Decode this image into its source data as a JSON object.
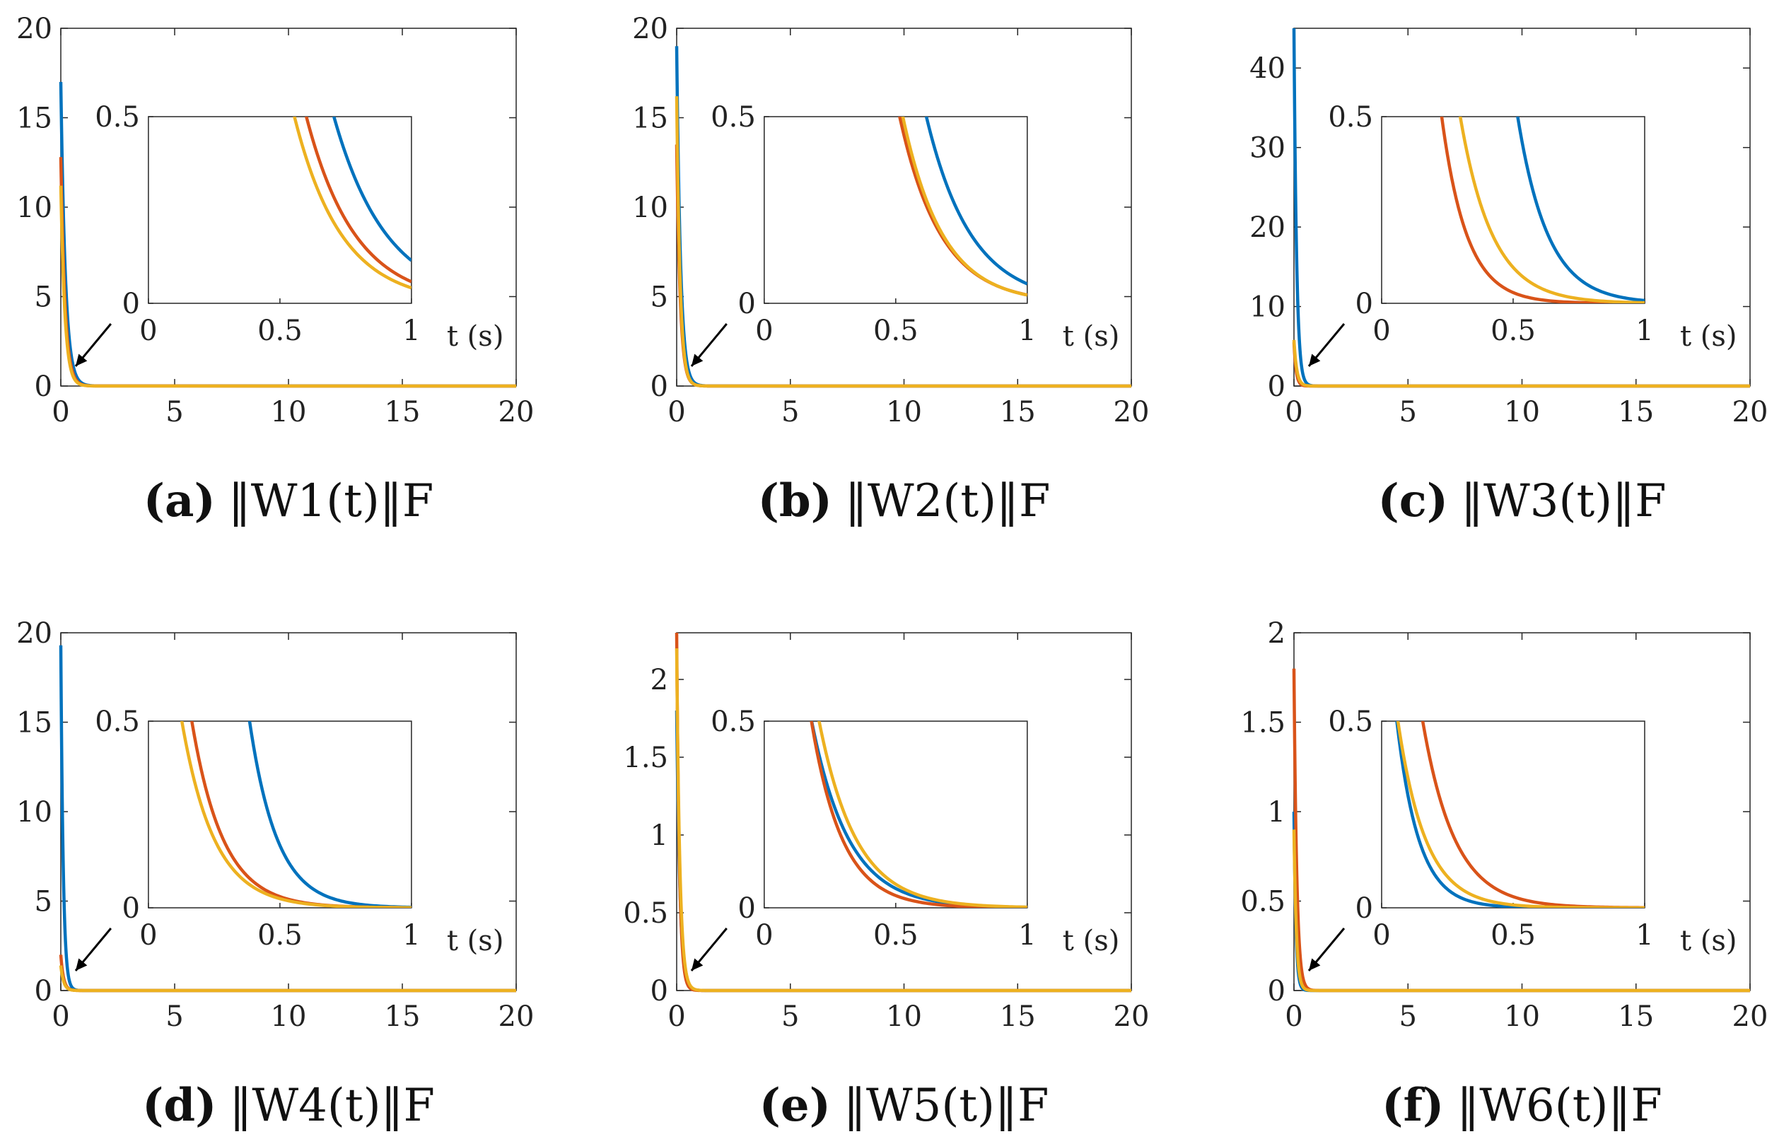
{
  "figure": {
    "colors": [
      "#0072BD",
      "#D95319",
      "#EDB120"
    ]
  },
  "chart_data": [
    {
      "type": "line",
      "id": "a",
      "caption_tag": "(a)",
      "caption_sub": "1",
      "caption_text": "‖W1(t)‖F",
      "xlim": [
        0,
        20
      ],
      "ylim": [
        0,
        20
      ],
      "x_ticks": [
        "0",
        "5",
        "10",
        "15",
        "20"
      ],
      "y_ticks": [
        "0",
        "5",
        "10",
        "15",
        "20"
      ],
      "peaks": [
        17,
        12.8,
        11.2
      ],
      "rates": [
        5,
        5.4,
        5.6
      ],
      "inset": {
        "xlim": [
          0,
          1
        ],
        "ylim": [
          0,
          0.5
        ],
        "x_ticks": [
          "0",
          "0.5",
          "1"
        ],
        "y_ticks": [
          "0",
          "0.5"
        ],
        "xlabel": "t (s)"
      }
    },
    {
      "type": "line",
      "id": "b",
      "caption_tag": "(b)",
      "caption_sub": "2",
      "caption_text": "‖W2(t)‖F",
      "xlim": [
        0,
        20
      ],
      "ylim": [
        0,
        20
      ],
      "x_ticks": [
        "0",
        "5",
        "10",
        "15",
        "20"
      ],
      "y_ticks": [
        "0",
        "5",
        "10",
        "15",
        "20"
      ],
      "peaks": [
        19,
        13.5,
        16.2
      ],
      "rates": [
        5.9,
        6.4,
        6.6
      ],
      "inset": {
        "xlim": [
          0,
          1
        ],
        "ylim": [
          0,
          0.5
        ],
        "x_ticks": [
          "0",
          "0.5",
          "1"
        ],
        "y_ticks": [
          "0",
          "0.5"
        ],
        "xlabel": "t (s)"
      }
    },
    {
      "type": "line",
      "id": "c",
      "caption_tag": "(c)",
      "caption_sub": "3",
      "caption_text": "‖W3(t)‖F",
      "xlim": [
        0,
        20
      ],
      "ylim": [
        0,
        45
      ],
      "x_ticks": [
        "0",
        "5",
        "10",
        "15",
        "20"
      ],
      "y_ticks": [
        "0",
        "10",
        "20",
        "30",
        "40"
      ],
      "peaks": [
        45,
        5.5,
        5.8
      ],
      "rates": [
        8.7,
        10.5,
        8.2
      ],
      "inset": {
        "xlim": [
          0,
          1
        ],
        "ylim": [
          0,
          0.5
        ],
        "x_ticks": [
          "0",
          "0.5",
          "1"
        ],
        "y_ticks": [
          "0",
          "0.5"
        ],
        "xlabel": "t (s)"
      }
    },
    {
      "type": "line",
      "id": "d",
      "caption_tag": "(d)",
      "caption_sub": "4",
      "caption_text": "‖W4(t)‖F",
      "xlim": [
        0,
        20
      ],
      "ylim": [
        0,
        20
      ],
      "x_ticks": [
        "0",
        "5",
        "10",
        "15",
        "20"
      ],
      "y_ticks": [
        "0",
        "5",
        "10",
        "15",
        "20"
      ],
      "peaks": [
        19.3,
        2.0,
        1.4
      ],
      "rates": [
        9.5,
        8.4,
        8.1
      ],
      "inset": {
        "xlim": [
          0,
          1
        ],
        "ylim": [
          0,
          0.5
        ],
        "x_ticks": [
          "0",
          "0.5",
          "1"
        ],
        "y_ticks": [
          "0",
          "0.5"
        ],
        "xlabel": "t (s)"
      }
    },
    {
      "type": "line",
      "id": "e",
      "caption_tag": "(e)",
      "caption_sub": "5",
      "caption_text": "‖W5(t)‖F",
      "xlim": [
        0,
        20
      ],
      "ylim": [
        0,
        2.3
      ],
      "x_ticks": [
        "0",
        "5",
        "10",
        "15",
        "20"
      ],
      "y_ticks": [
        "0",
        "0.5",
        "1",
        "1.5",
        "2"
      ],
      "peaks": [
        1.8,
        2.3,
        2.2
      ],
      "rates": [
        7.1,
        8.5,
        7.1
      ],
      "inset": {
        "xlim": [
          0,
          1
        ],
        "ylim": [
          0,
          0.5
        ],
        "x_ticks": [
          "0",
          "0.5",
          "1"
        ],
        "y_ticks": [
          "0",
          "0.5"
        ],
        "xlabel": "t (s)"
      }
    },
    {
      "type": "line",
      "id": "f",
      "caption_tag": "(f)",
      "caption_sub": "6",
      "caption_text": "‖W6(t)‖F",
      "xlim": [
        0,
        20
      ],
      "ylim": [
        0,
        2
      ],
      "x_ticks": [
        "0",
        "5",
        "10",
        "15",
        "20"
      ],
      "y_ticks": [
        "0",
        "0.5",
        "1",
        "1.5",
        "2"
      ],
      "peaks": [
        1.0,
        1.8,
        0.9
      ],
      "rates": [
        12,
        8.2,
        9.5
      ],
      "inset": {
        "xlim": [
          0,
          1
        ],
        "ylim": [
          0,
          0.5
        ],
        "x_ticks": [
          "0",
          "0.5",
          "1"
        ],
        "y_ticks": [
          "0",
          "0.5"
        ],
        "xlabel": "t (s)"
      }
    }
  ]
}
